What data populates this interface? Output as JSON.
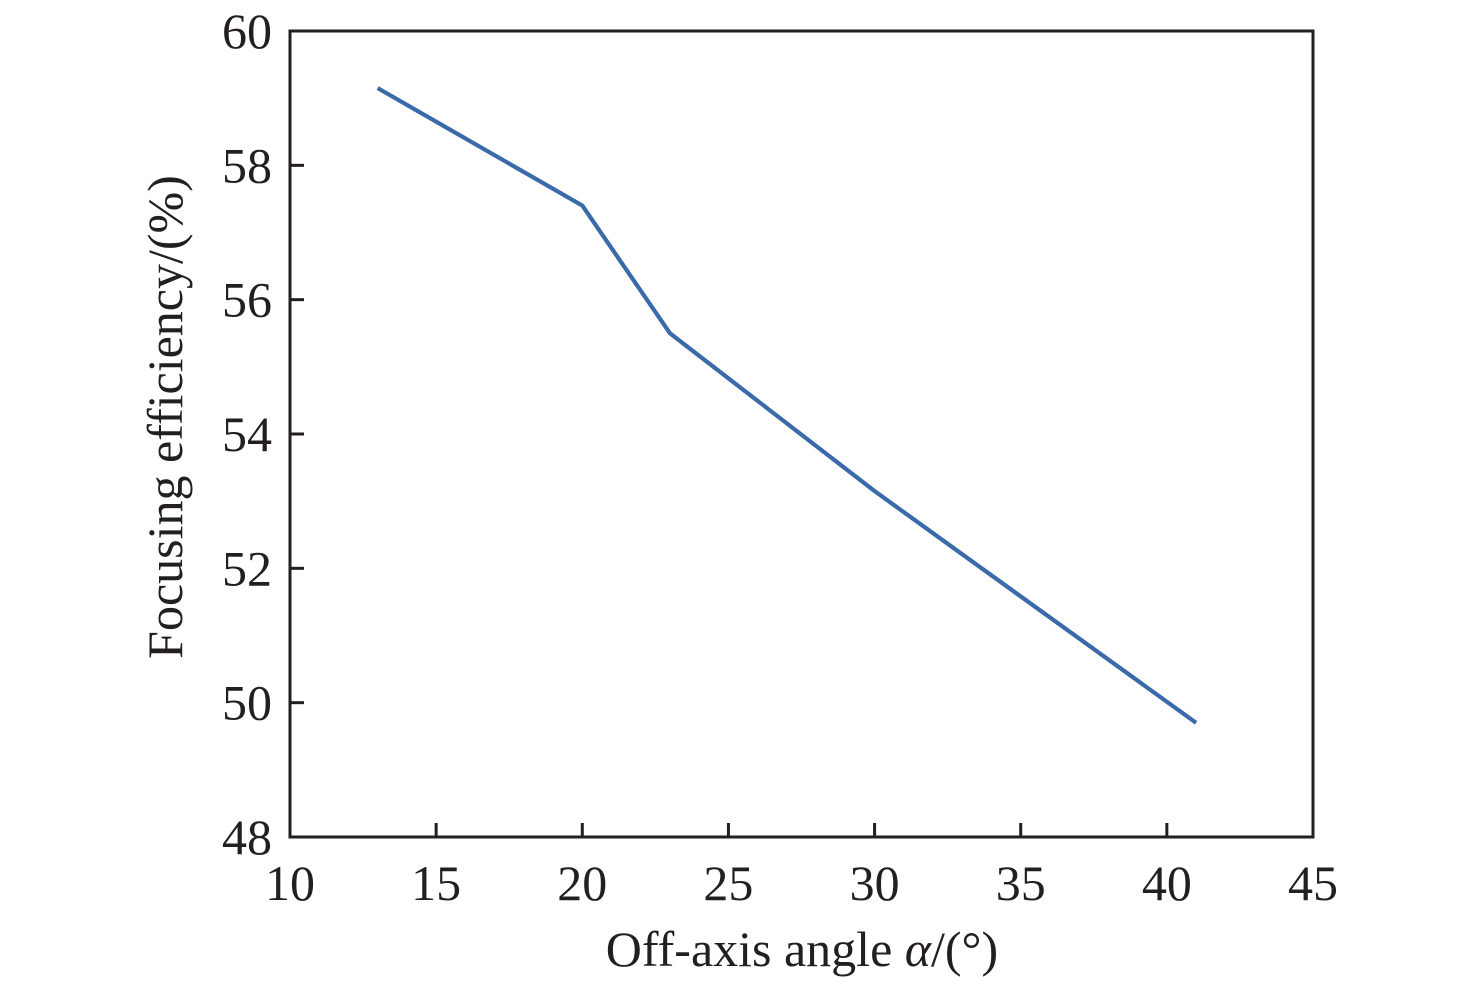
{
  "chart_data": {
    "type": "line",
    "title": "",
    "xlabel": "Off-axis angle ",
    "xlabel_symbol": "α",
    "xlabel_unit": "/(°)",
    "ylabel": "Focusing efficiency/(%)",
    "xlim": [
      10,
      45
    ],
    "ylim": [
      48,
      60
    ],
    "xticks": [
      10,
      15,
      20,
      25,
      30,
      35,
      40,
      45
    ],
    "yticks": [
      48,
      50,
      52,
      54,
      56,
      58,
      60
    ],
    "grid": false,
    "legend": "none",
    "series": [
      {
        "color": "#3a6aaa",
        "x": [
          13,
          20,
          23,
          30,
          41
        ],
        "y": [
          59.15,
          57.4,
          55.5,
          53.15,
          49.7
        ]
      }
    ]
  }
}
